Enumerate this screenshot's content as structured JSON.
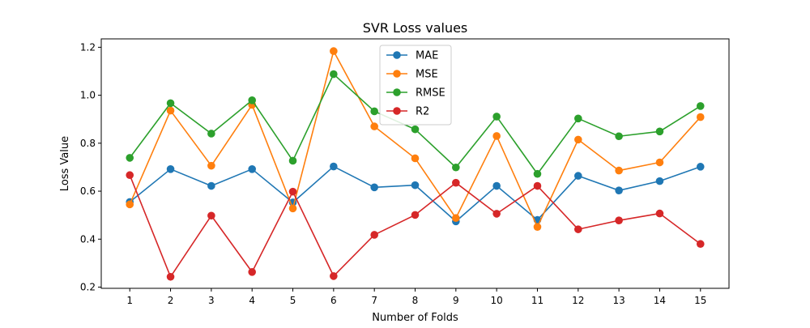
{
  "chart_data": {
    "type": "line",
    "title": "SVR Loss values",
    "xlabel": "Number of Folds",
    "ylabel": "Loss Value",
    "x": [
      1,
      2,
      3,
      4,
      5,
      6,
      7,
      8,
      9,
      10,
      11,
      12,
      13,
      14,
      15
    ],
    "xlim": [
      0.3,
      15.7
    ],
    "ylim": [
      0.195,
      1.235
    ],
    "yticks": [
      0.2,
      0.4,
      0.6,
      0.8,
      1.0,
      1.2
    ],
    "ytick_labels": [
      "0.2",
      "0.4",
      "0.6",
      "0.8",
      "1.0",
      "1.2"
    ],
    "grid": false,
    "legend_position": "top-center",
    "series": [
      {
        "name": "MAE",
        "color": "#1f77b4",
        "values": [
          0.555,
          0.692,
          0.622,
          0.692,
          0.553,
          0.703,
          0.616,
          0.625,
          0.474,
          0.622,
          0.48,
          0.664,
          0.603,
          0.642,
          0.702
        ]
      },
      {
        "name": "MSE",
        "color": "#ff7f0e",
        "values": [
          0.545,
          0.936,
          0.706,
          0.96,
          0.528,
          1.184,
          0.87,
          0.737,
          0.488,
          0.83,
          0.451,
          0.815,
          0.686,
          0.72,
          0.909
        ]
      },
      {
        "name": "RMSE",
        "color": "#2ca02c",
        "values": [
          0.739,
          0.967,
          0.84,
          0.979,
          0.727,
          1.088,
          0.933,
          0.858,
          0.699,
          0.911,
          0.672,
          0.903,
          0.829,
          0.849,
          0.955
        ]
      },
      {
        "name": "R2",
        "color": "#d62728",
        "values": [
          0.667,
          0.243,
          0.498,
          0.263,
          0.598,
          0.246,
          0.418,
          0.501,
          0.635,
          0.506,
          0.622,
          0.441,
          0.478,
          0.507,
          0.38
        ]
      }
    ]
  }
}
